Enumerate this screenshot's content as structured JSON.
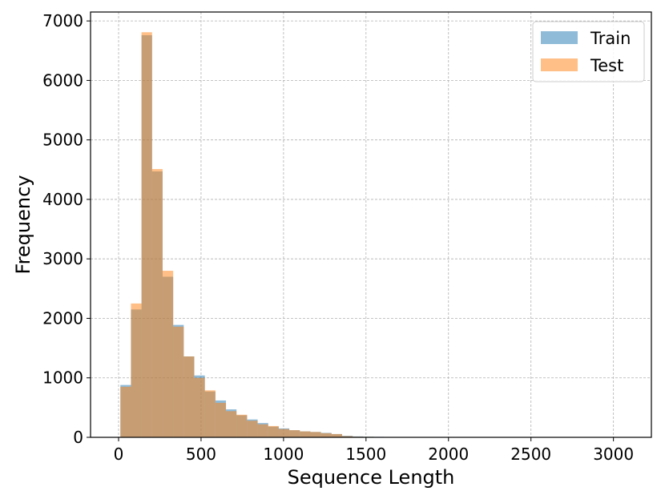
{
  "chart_data": {
    "type": "bar",
    "title": "",
    "xlabel": "Sequence Length",
    "ylabel": "Frequency",
    "xlim": [
      -170,
      3230
    ],
    "ylim": [
      0,
      7150
    ],
    "xticks": [
      0,
      500,
      1000,
      1500,
      2000,
      2500,
      3000
    ],
    "yticks": [
      0,
      1000,
      2000,
      3000,
      4000,
      5000,
      6000,
      7000
    ],
    "grid": true,
    "legend_position": "top-right",
    "bin_width": 64,
    "bin_start": 11,
    "series": [
      {
        "name": "Train",
        "color": "#1f77b4",
        "opacity": 0.5,
        "values": [
          880,
          2150,
          6760,
          4470,
          2700,
          1890,
          1360,
          1040,
          770,
          620,
          470,
          370,
          300,
          240,
          180,
          150,
          120,
          100,
          90,
          75,
          55,
          25,
          15,
          10,
          8,
          6,
          5,
          4,
          3,
          3,
          2,
          2,
          2,
          1,
          1,
          1,
          1,
          1,
          1,
          1,
          1,
          1,
          1,
          1,
          1,
          1,
          1,
          1,
          1
        ]
      },
      {
        "name": "Test",
        "color": "#ff7f0e",
        "opacity": 0.5,
        "values": [
          850,
          2250,
          6810,
          4510,
          2800,
          1860,
          1360,
          1000,
          790,
          580,
          440,
          380,
          280,
          220,
          190,
          140,
          120,
          100,
          90,
          70,
          55,
          20,
          10,
          8,
          6,
          5,
          4,
          3,
          2,
          2,
          2,
          1,
          1,
          1,
          1,
          1,
          1,
          1,
          1,
          1,
          1,
          1,
          1,
          1,
          1,
          1,
          1,
          1,
          1
        ]
      }
    ]
  }
}
